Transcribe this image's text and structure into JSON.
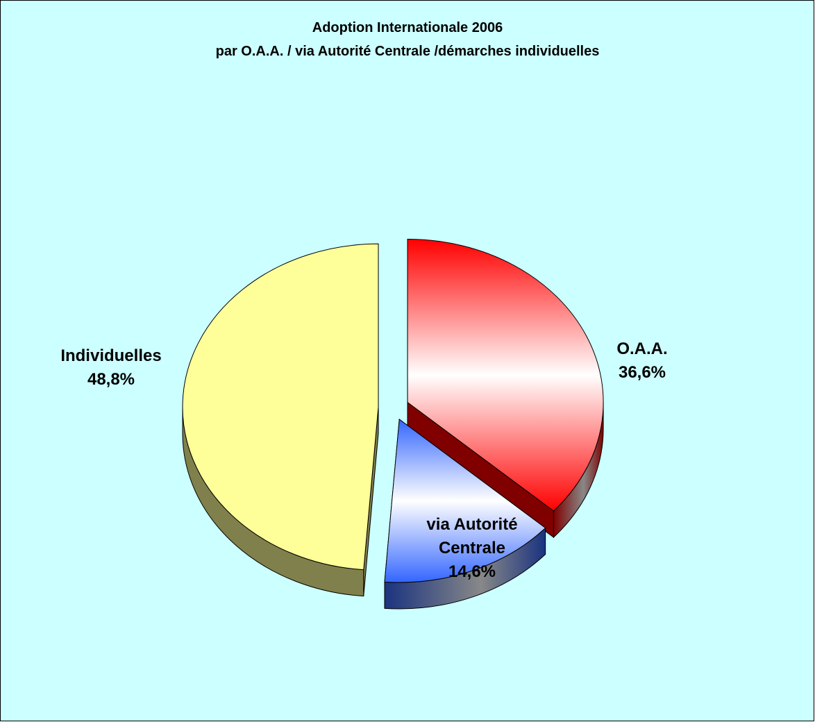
{
  "chart_data": {
    "type": "pie3d",
    "title": "Adoption Internationale 2006",
    "subtitle": "par O.A.A. / via Autorité Centrale /démarches individuelles",
    "categories": [
      "O.A.A.",
      "via Autorité Centrale",
      "Individuelles"
    ],
    "values": [
      36.6,
      14.6,
      48.8
    ],
    "value_labels": [
      "36,6%",
      "14,6%",
      "48,8%"
    ],
    "colors": [
      "#ff0000",
      "#3366ff",
      "#ffff99"
    ],
    "gradient": [
      true,
      true,
      false
    ]
  }
}
